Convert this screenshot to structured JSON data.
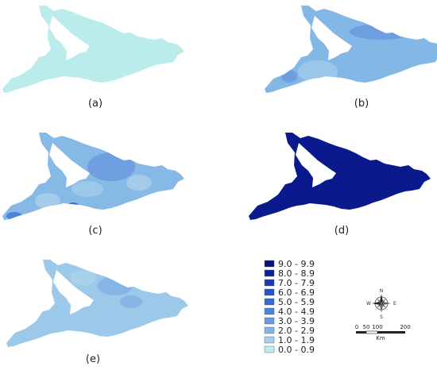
{
  "panels": [
    {
      "label": "(a)",
      "base_color": "#b9ecea"
    },
    {
      "label": "(b)",
      "base_color": "#83b8e6"
    },
    {
      "label": "(c)",
      "base_color": "#86b9e6"
    },
    {
      "label": "(d)",
      "base_color": "#0a1a8c"
    },
    {
      "label": "(e)",
      "base_color": "#9cc9ea"
    }
  ],
  "legend": {
    "classes": [
      {
        "label": "9.0 - 9.9",
        "color": "#08127e"
      },
      {
        "label": "8.0 - 8.9",
        "color": "#0b2396"
      },
      {
        "label": "7.0 - 7.9",
        "color": "#1a3cb0"
      },
      {
        "label": "6.0 - 6.9",
        "color": "#2853c4"
      },
      {
        "label": "5.0 - 5.9",
        "color": "#3a6bd2"
      },
      {
        "label": "4.0 - 4.9",
        "color": "#4d83dc"
      },
      {
        "label": "3.0 - 3.9",
        "color": "#6a9ce3"
      },
      {
        "label": "2.0 - 2.9",
        "color": "#86b4e6"
      },
      {
        "label": "1.0 - 1.9",
        "color": "#a7cdea"
      },
      {
        "label": "0.0 - 0.9",
        "color": "#bfeceb"
      }
    ]
  },
  "compass": {
    "n": "N",
    "s": "S",
    "e": "E",
    "w": "W"
  },
  "scale_bar": {
    "ticks": [
      "0",
      "50",
      "100",
      "200"
    ],
    "unit": "Km"
  }
}
